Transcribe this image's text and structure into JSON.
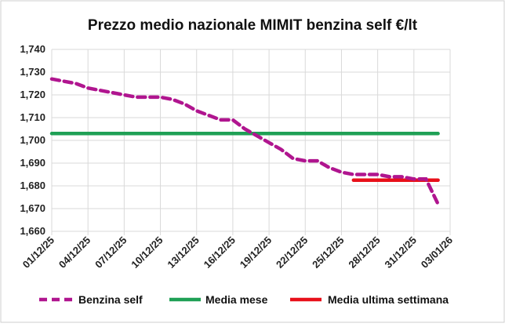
{
  "chart_data": {
    "type": "line",
    "title": "Prezzo medio nazionale MIMIT benzina self €/lt",
    "ylim": [
      1.66,
      1.74
    ],
    "yticks": [
      "1,660",
      "1,670",
      "1,680",
      "1,690",
      "1,700",
      "1,710",
      "1,720",
      "1,730",
      "1,740"
    ],
    "xticks": [
      "01/12/25",
      "04/12/25",
      "07/12/25",
      "10/12/25",
      "13/12/25",
      "16/12/25",
      "19/12/25",
      "22/12/25",
      "25/12/25",
      "28/12/25",
      "31/12/25",
      "03/01/26"
    ],
    "xrange": [
      "01/12/25",
      "03/01/26"
    ],
    "grid": true,
    "legend_position": "bottom",
    "series": [
      {
        "name": "Benzina self",
        "color": "#b0158f",
        "style": "dashed",
        "x": [
          "01/12/25",
          "02/12/25",
          "03/12/25",
          "04/12/25",
          "05/12/25",
          "06/12/25",
          "07/12/25",
          "08/12/25",
          "09/12/25",
          "10/12/25",
          "11/12/25",
          "12/12/25",
          "13/12/25",
          "14/12/25",
          "15/12/25",
          "16/12/25",
          "17/12/25",
          "18/12/25",
          "19/12/25",
          "20/12/25",
          "21/12/25",
          "22/12/25",
          "23/12/25",
          "24/12/25",
          "25/12/25",
          "26/12/25",
          "27/12/25",
          "28/12/25",
          "29/12/25",
          "30/12/25",
          "31/12/25",
          "01/01/26",
          "02/01/26"
        ],
        "values": [
          1.727,
          1.726,
          1.725,
          1.723,
          1.722,
          1.721,
          1.72,
          1.719,
          1.719,
          1.719,
          1.718,
          1.716,
          1.713,
          1.711,
          1.709,
          1.709,
          1.705,
          1.702,
          1.699,
          1.696,
          1.692,
          1.691,
          1.691,
          1.688,
          1.686,
          1.685,
          1.685,
          1.685,
          1.684,
          1.684,
          1.683,
          1.683,
          1.672
        ]
      },
      {
        "name": "Media mese",
        "color": "#1fa055",
        "style": "solid",
        "x": [
          "01/12/25",
          "02/01/26"
        ],
        "values": [
          1.703,
          1.703
        ]
      },
      {
        "name": "Media ultima settimana",
        "color": "#e8101a",
        "style": "solid",
        "x": [
          "26/12/25",
          "02/01/26"
        ],
        "values": [
          1.6825,
          1.6825
        ]
      }
    ]
  }
}
